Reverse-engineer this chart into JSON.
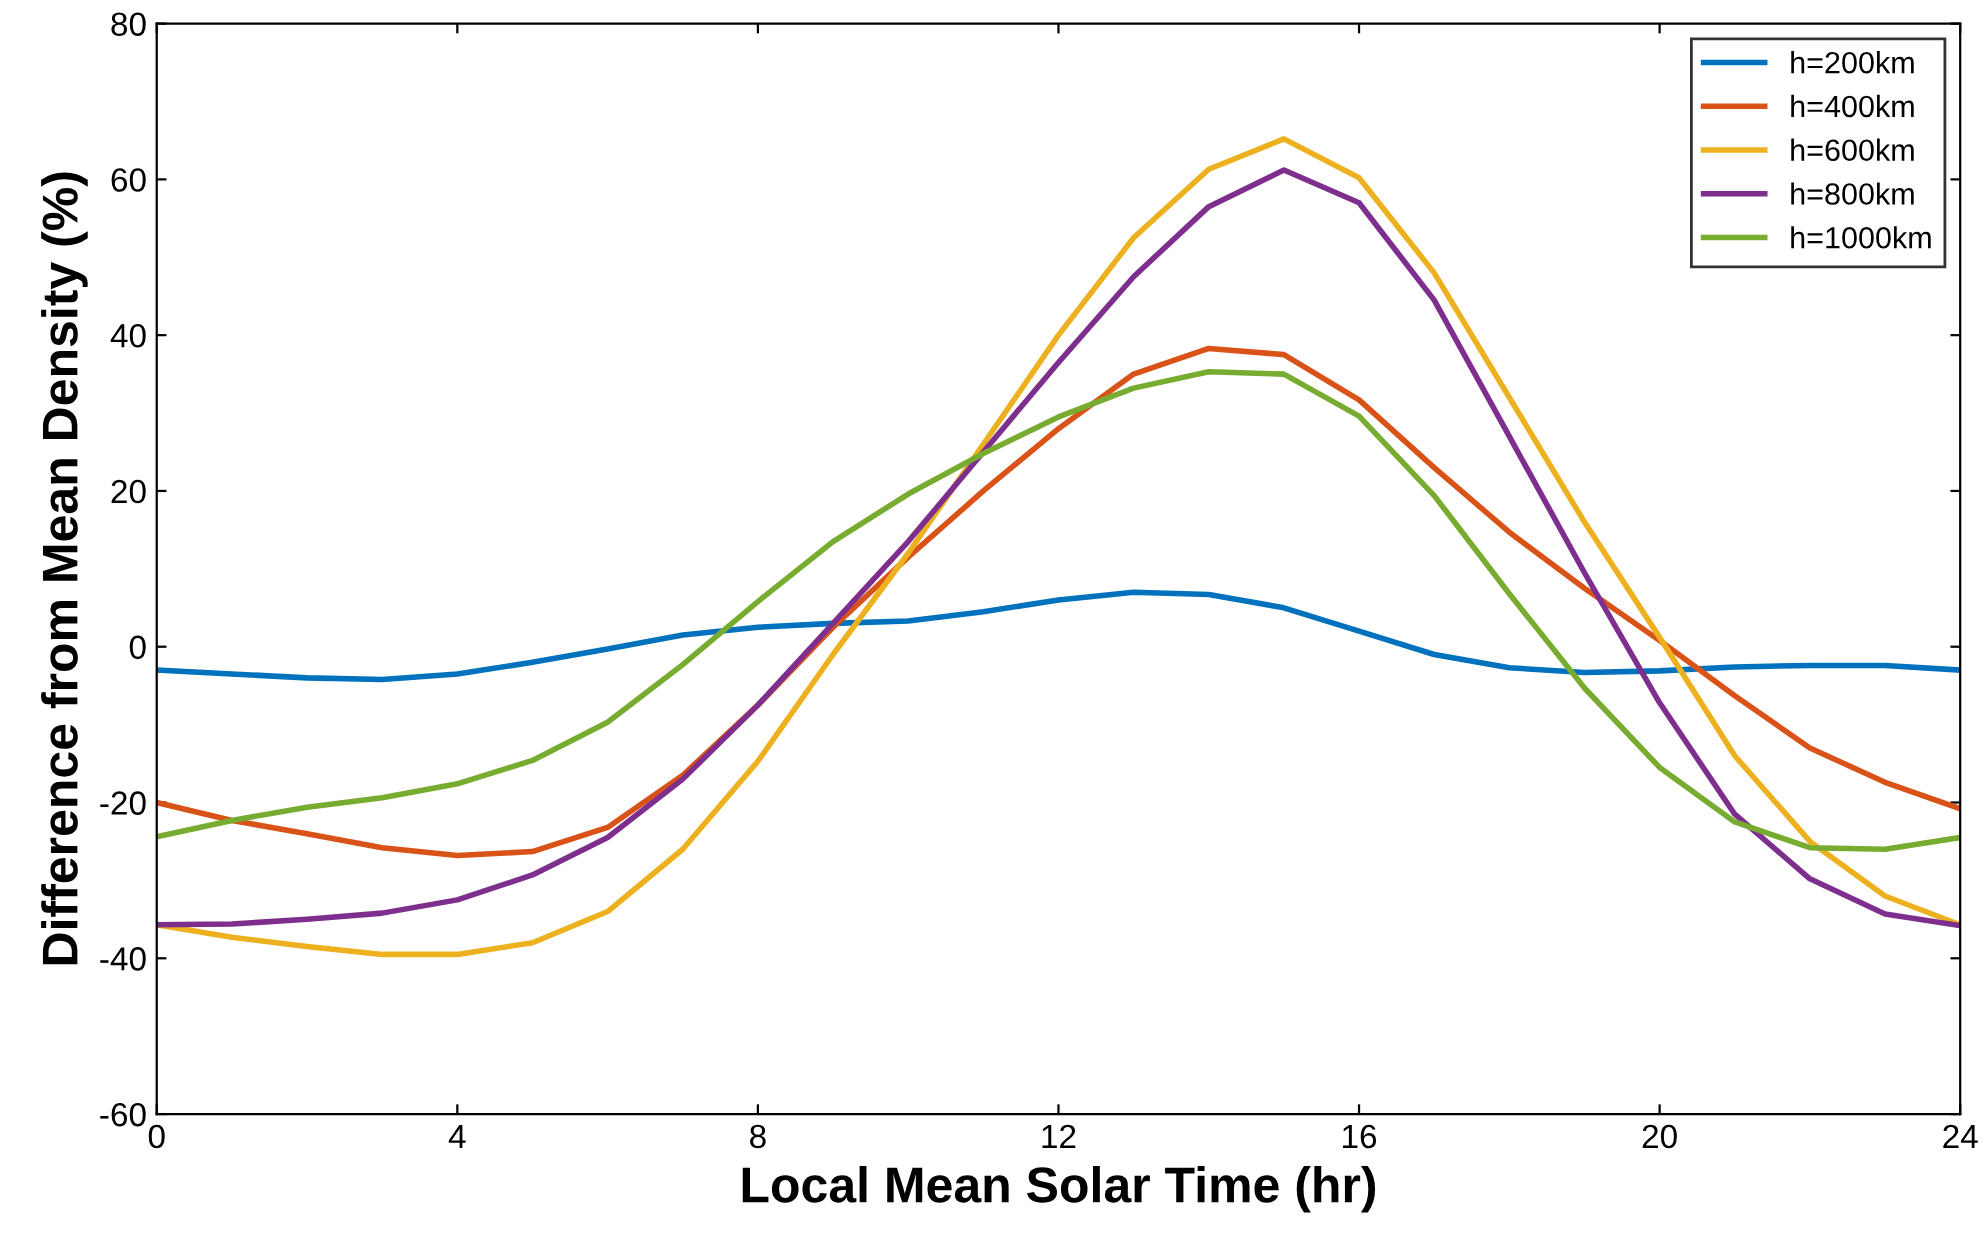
{
  "chart_data": {
    "type": "line",
    "xlabel": "Local Mean Solar Time (hr)",
    "ylabel": "Difference from Mean Density (%)",
    "x": [
      0,
      1,
      2,
      3,
      4,
      5,
      6,
      7,
      8,
      9,
      10,
      11,
      12,
      13,
      14,
      15,
      16,
      17,
      18,
      19,
      20,
      21,
      22,
      23,
      24
    ],
    "xlim": [
      0,
      24
    ],
    "xticks": [
      0,
      4,
      8,
      12,
      16,
      20,
      24
    ],
    "ylim": [
      -60,
      80
    ],
    "yticks": [
      -60,
      -40,
      -20,
      0,
      20,
      40,
      60,
      80
    ],
    "grid": false,
    "legend": "top right",
    "marker": "none",
    "line_style": "solid",
    "series": [
      {
        "name": "h=200km",
        "color": "#0072bd",
        "values": [
          -3,
          -3.5,
          -4,
          -4.2,
          -3.5,
          -2,
          -0.3,
          1.5,
          2.5,
          3,
          3.3,
          4.5,
          6,
          7,
          6.7,
          5,
          2,
          -1,
          -2.7,
          -3.3,
          -3.1,
          -2.6,
          -2.4,
          -2.4,
          -3
        ]
      },
      {
        "name": "h=400km",
        "color": "#d95319",
        "values": [
          -20,
          -22.3,
          -24,
          -25.8,
          -26.8,
          -26.3,
          -23.2,
          -16.5,
          -7.5,
          2.5,
          11.5,
          20,
          28,
          35,
          38.3,
          37.5,
          31.7,
          23,
          14.7,
          7.5,
          0.8,
          -6.3,
          -13,
          -17.4,
          -20.8
        ]
      },
      {
        "name": "h=600km",
        "color": "#edb120",
        "values": [
          -35.7,
          -37.3,
          -38.5,
          -39.5,
          -39.5,
          -38,
          -34,
          -26,
          -14.7,
          -1,
          12,
          26,
          40,
          52.5,
          61.3,
          65.2,
          60.2,
          48,
          32,
          16,
          1.2,
          -14,
          -25,
          -32,
          -35.7
        ]
      },
      {
        "name": "h=800km",
        "color": "#7e2f8e",
        "values": [
          -35.7,
          -35.6,
          -35,
          -34.2,
          -32.5,
          -29.3,
          -24.5,
          -17,
          -7.5,
          3,
          13.5,
          25,
          36.5,
          47.5,
          56.5,
          61.2,
          57,
          44.5,
          27,
          9.5,
          -7.2,
          -21.5,
          -29.8,
          -34.3,
          -35.8
        ]
      },
      {
        "name": "h=1000km",
        "color": "#77ac30",
        "values": [
          -24.4,
          -22.3,
          -20.6,
          -19.4,
          -17.6,
          -14.6,
          -9.7,
          -2.3,
          5.8,
          13.5,
          19.6,
          24.8,
          29.5,
          33.2,
          35.3,
          35,
          29.6,
          19.4,
          6.8,
          -5.3,
          -15.5,
          -22.5,
          -25.8,
          -26,
          -24.5
        ]
      }
    ]
  }
}
